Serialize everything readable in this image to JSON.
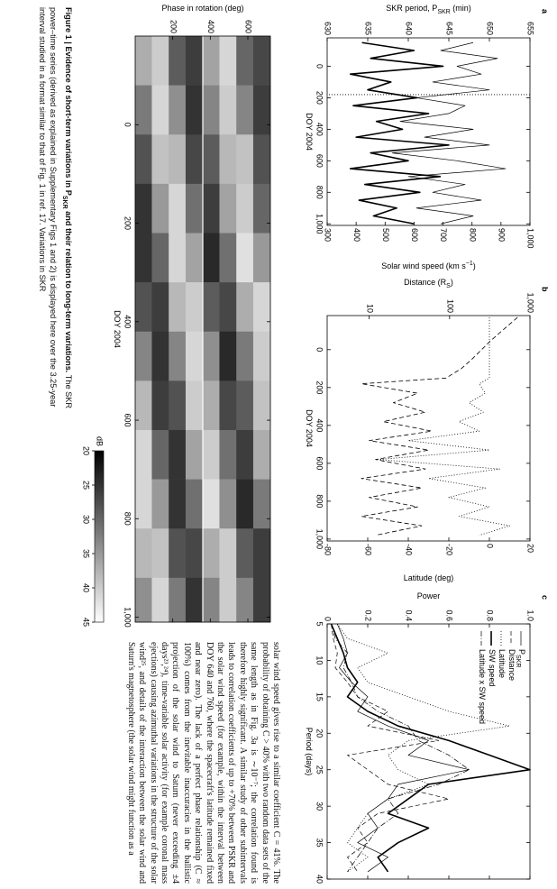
{
  "body_text": "solar wind speed gives rise to a similar coefficient C = 41%. The probability of obtaining C > 40% with two random data sets of the same length as in Fig. 3a is ∼10⁻⁷; the correlation found is therefore highly significant. A similar study of other subintervals leads to correlation coefficients of up to +70% between PSKR and the solar wind speed (for example, within the interval between DOY 640 and 760, where the spacecraft's latitude remained fixed and near zero). The lack of a perfect phase relationship (C ≈ 100%) comes from the inevitable inaccuracies in the ballistic projection of the solar wind to Saturn (never exceeding ±4 days²³,²⁴), time-variable solar activity (for example coronal mass ejections) causing azimuthal variations in the structure of the solar wind²⁵, and details of the interaction between the solar wind and Saturn's magnetosphere (the solar wind might function as a",
  "figure_caption": {
    "label": "Figure 1 |",
    "title": "Evidence of short-term variations in P",
    "title_sub": "SKR",
    "title_end": " and their relation to long-term variations.",
    "text": "The SKR power–time series (derived as explained in Supplementary Figs 1 and 2) is displayed here over the 3.25-year interval studied in a format similar to that of Fig. 1 in ref. 17. Variations in SKR"
  },
  "chart_data": [
    {
      "type": "line",
      "panel_label": "a",
      "xlabel": "DOY 2004",
      "ylabel": "SKR period, P",
      "ylabel_sub": "SKR",
      "ylabel_end": " (min)",
      "y2label": "Solar wind speed (km s",
      "y2label_sup": "−1",
      "y2label_end": ")",
      "x": [
        -150,
        -100,
        -50,
        0,
        50,
        100,
        150,
        200,
        250,
        300,
        350,
        400,
        450,
        500,
        550,
        600,
        650,
        700,
        750,
        800,
        850,
        900,
        950,
        1000
      ],
      "series": [
        {
          "color": "#000000",
          "line_width": 0.7,
          "values": [
            648,
            644,
            651,
            646,
            649,
            643,
            650,
            641,
            647,
            645,
            639,
            648,
            642,
            650,
            638,
            646,
            652,
            640,
            647,
            643,
            649,
            641,
            648,
            644
          ]
        },
        {
          "color": "#000000",
          "line_width": 1.6,
          "axis": "y2",
          "values": [
            420,
            600,
            450,
            700,
            380,
            520,
            440,
            610,
            390,
            650,
            470,
            560,
            400,
            720,
            450,
            580,
            380,
            690,
            430,
            620,
            410,
            540,
            460,
            600
          ]
        }
      ],
      "vline_x": 180,
      "xlim": [
        -180,
        1010
      ],
      "xticks": [
        0,
        200,
        400,
        600,
        800,
        {
          "value": 1000,
          "label": "1,000"
        }
      ],
      "ylim": [
        630,
        655
      ],
      "yticks": [
        630,
        635,
        640,
        645,
        650,
        655
      ],
      "y2lim": [
        300,
        1000
      ],
      "y2ticks": [
        300,
        400,
        500,
        600,
        700,
        800,
        900,
        {
          "value": 1000,
          "label": "1,000"
        }
      ]
    },
    {
      "type": "line",
      "panel_label": "b",
      "xlabel": "DOY 2004",
      "ylabel": "Distance (R",
      "ylabel_sub": "S",
      "ylabel_end": ")",
      "y2label": "Latitude (deg)",
      "ylog": true,
      "x": [
        -170,
        -100,
        -50,
        0,
        50,
        100,
        150,
        180,
        230,
        280,
        330,
        380,
        430,
        480,
        530,
        580,
        630,
        680,
        730,
        780,
        830,
        880,
        930,
        980
      ],
      "series": [
        {
          "color": "#000000",
          "line_width": 0.8,
          "dash": "5,3",
          "values": [
            700,
            450,
            330,
            250,
            190,
            140,
            90,
            8,
            40,
            20,
            50,
            15,
            60,
            10,
            55,
            12,
            50,
            8,
            45,
            10,
            40,
            8,
            45,
            12
          ]
        },
        {
          "color": "#000000",
          "line_width": 0.8,
          "dash": "1,2",
          "axis": "y2",
          "values": [
            0,
            0,
            0,
            0,
            0,
            0,
            0,
            -5,
            -2,
            -10,
            -3,
            -15,
            -5,
            -40,
            0,
            -55,
            5,
            -30,
            -2,
            -20,
            0,
            -15,
            10,
            -5
          ]
        }
      ],
      "xlim": [
        -180,
        1010
      ],
      "xticks": [
        0,
        200,
        400,
        600,
        800,
        {
          "value": 1000,
          "label": "1,000"
        }
      ],
      "ylim": [
        3,
        1000
      ],
      "yticks": [
        10,
        100,
        {
          "value": 1000,
          "label": "1,000"
        }
      ],
      "y2lim": [
        -80,
        20
      ],
      "y2ticks": [
        -80,
        -60,
        -40,
        -20,
        0,
        20
      ]
    },
    {
      "type": "line",
      "panel_label": "c",
      "xlabel": "Period (days)",
      "ylabel": "Power",
      "legend": "upper left",
      "x": [
        5,
        7,
        9,
        11,
        13,
        15,
        17,
        19,
        21,
        23,
        25,
        27,
        29,
        31,
        33,
        35,
        37,
        39
      ],
      "series": [
        {
          "name": "P",
          "name_sub": "SKR",
          "color": "#000000",
          "line_width": 0.7,
          "values": [
            0.05,
            0.08,
            0.1,
            0.06,
            0.12,
            0.2,
            0.15,
            0.3,
            0.5,
            0.4,
            0.7,
            0.35,
            0.3,
            0.2,
            0.25,
            0.15,
            0.3,
            0.2
          ]
        },
        {
          "name": "Distance",
          "color": "#000000",
          "line_width": 0.7,
          "dash": "5,3",
          "values": [
            0.02,
            0.03,
            0.05,
            0.04,
            0.1,
            0.15,
            0.3,
            0.2,
            0.55,
            0.1,
            0.2,
            0.3,
            0.6,
            0.25,
            0.15,
            0.2,
            0.1,
            0.15
          ]
        },
        {
          "name": "Latitude",
          "color": "#000000",
          "line_width": 0.8,
          "dash": "1,2",
          "values": [
            0.05,
            0.1,
            0.3,
            0.15,
            0.2,
            0.4,
            0.6,
            0.9,
            0.4,
            0.3,
            0.35,
            0.5,
            0.3,
            0.2,
            0.15,
            0.1,
            0.2,
            0.1
          ]
        },
        {
          "name": "SW speed",
          "color": "#000000",
          "line_width": 1.6,
          "values": [
            0.02,
            0.05,
            0.08,
            0.1,
            0.15,
            0.1,
            0.2,
            0.35,
            0.6,
            0.8,
            1.0,
            0.5,
            0.4,
            0.3,
            0.5,
            0.35,
            0.25,
            0.3
          ]
        },
        {
          "name": "Latitude x SW speed",
          "color": "#000000",
          "line_width": 0.7,
          "dash": "6,2,1,2",
          "values": [
            0.02,
            0.04,
            0.1,
            0.08,
            0.12,
            0.15,
            0.25,
            0.4,
            0.45,
            0.6,
            0.7,
            0.55,
            0.3,
            0.35,
            0.25,
            0.2,
            0.15,
            0.1
          ]
        }
      ],
      "xlim": [
        5,
        40
      ],
      "xticks": [
        5,
        10,
        15,
        20,
        25,
        30,
        35,
        40
      ],
      "ylim": [
        0,
        1
      ],
      "yticks": [
        0,
        0.2,
        0.4,
        0.6,
        0.8,
        {
          "value": 1,
          "label": "1.0"
        }
      ]
    },
    {
      "type": "heatmap",
      "xlabel": "DOY 2004",
      "ylabel": "Phase in rotation (deg)",
      "x_bins": [
        -180,
        -80,
        20,
        120,
        220,
        320,
        420,
        520,
        620,
        720,
        820,
        920,
        1010
      ],
      "y_bins": [
        0,
        90,
        180,
        270,
        360,
        450,
        540,
        630,
        720
      ],
      "values": [
        [
          37,
          32,
          28,
          25,
          25,
          28,
          33,
          38,
          41,
          41,
          38,
          34
        ],
        [
          40,
          41,
          39,
          35,
          30,
          26,
          25,
          26,
          30,
          35,
          39,
          41
        ],
        [
          29,
          34,
          38,
          41,
          41,
          38,
          33,
          28,
          25,
          25,
          28,
          32
        ],
        [
          26,
          25,
          27,
          31,
          36,
          40,
          41,
          40,
          36,
          31,
          27,
          25
        ],
        [
          36,
          33,
          29,
          26,
          24,
          29,
          34,
          37,
          40,
          42,
          37,
          33
        ],
        [
          41,
          40,
          38,
          36,
          31,
          27,
          24,
          27,
          31,
          34,
          40,
          40
        ],
        [
          30,
          33,
          39,
          40,
          42,
          37,
          32,
          29,
          26,
          24,
          29,
          33
        ],
        [
          27,
          26,
          28,
          30,
          35,
          41,
          40,
          39,
          37,
          32,
          26,
          26
        ]
      ],
      "marker_y": 360,
      "xlim": [
        -180,
        1010
      ],
      "xticks": [
        0,
        200,
        400,
        600,
        800,
        {
          "value": 1000,
          "label": "1,000"
        }
      ],
      "ylim": [
        0,
        720
      ],
      "yticks": [
        200,
        400,
        600
      ],
      "colorbar": {
        "label": "dB",
        "colormap": "gray",
        "range": [
          20,
          45
        ],
        "ticks": [
          20,
          25,
          30,
          35,
          40,
          45
        ]
      }
    }
  ]
}
